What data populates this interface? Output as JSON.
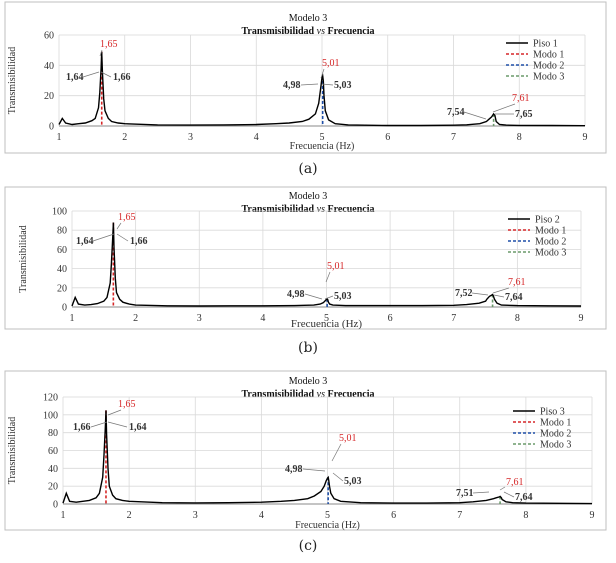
{
  "colors": {
    "series": "#000000",
    "mode1": "#d62728",
    "mode2": "#1f4fa8",
    "mode3": "#6a9a6a",
    "grid": "#d9d9d9",
    "frame": "#bfbfbf",
    "peakLabel": "#333333",
    "modeLabel": "#d62728"
  },
  "chart_data": [
    {
      "type": "line",
      "caption": "(a)",
      "title": "Modelo 3",
      "subtitle_pre": "Transmisibilidad ",
      "subtitle_vs": "vs",
      "subtitle_post": " Frecuencia",
      "xlabel": "Frecuencia (Hz)",
      "ylabel": "Transmisibilidad",
      "xlim": [
        1,
        9
      ],
      "ylim": [
        0,
        60
      ],
      "xticks": [
        1,
        2,
        3,
        4,
        5,
        6,
        7,
        8,
        9
      ],
      "yticks": [
        0,
        20,
        40,
        60
      ],
      "legend": [
        "Piso 1",
        "Modo 1",
        "Modo 2",
        "Modo 3"
      ],
      "series": {
        "name": "Piso 1",
        "x": [
          1.0,
          1.05,
          1.1,
          1.2,
          1.3,
          1.4,
          1.5,
          1.55,
          1.6,
          1.62,
          1.64,
          1.65,
          1.66,
          1.68,
          1.7,
          1.75,
          1.8,
          1.9,
          2.0,
          2.5,
          3.0,
          3.5,
          4.0,
          4.3,
          4.5,
          4.7,
          4.8,
          4.9,
          4.95,
          4.98,
          5.0,
          5.01,
          5.02,
          5.03,
          5.05,
          5.1,
          5.2,
          5.4,
          6.0,
          6.5,
          7.0,
          7.2,
          7.4,
          7.5,
          7.54,
          7.58,
          7.61,
          7.63,
          7.65,
          7.7,
          7.8,
          8.0,
          8.5,
          9.0
        ],
        "values": [
          1,
          5,
          2,
          1,
          1.5,
          2,
          3.5,
          5,
          12,
          22,
          38,
          49,
          36,
          18,
          10,
          5,
          3,
          2,
          1.5,
          0.7,
          0.6,
          0.7,
          1,
          1.5,
          2,
          3,
          4.5,
          8,
          15,
          25,
          32,
          33,
          30,
          20,
          10,
          4,
          1.5,
          0.7,
          0.3,
          0.3,
          0.5,
          0.8,
          1.5,
          3,
          4.5,
          6,
          8,
          7,
          3,
          1,
          0.6,
          0.4,
          0.3,
          0.2
        ]
      },
      "modes": [
        1.65,
        5.01,
        7.61
      ],
      "peaks": [
        {
          "text": "1,64",
          "color": "peak"
        },
        {
          "text": "1,65",
          "color": "mode"
        },
        {
          "text": "1,66",
          "color": "peak"
        },
        {
          "text": "4,98",
          "color": "peak"
        },
        {
          "text": "5,01",
          "color": "mode"
        },
        {
          "text": "5,03",
          "color": "peak"
        },
        {
          "text": "7,54",
          "color": "peak"
        },
        {
          "text": "7,61",
          "color": "mode"
        },
        {
          "text": "7,65",
          "color": "peak"
        }
      ]
    },
    {
      "type": "line",
      "caption": "(b)",
      "title": "Modelo 3",
      "subtitle_pre": "Transmisibilidad ",
      "subtitle_vs": "vs",
      "subtitle_post": " Frecuencia",
      "xlabel": "Frecuencia (Hz)",
      "ylabel": "Transmisibilidad",
      "xlim": [
        1,
        9
      ],
      "ylim": [
        0,
        100
      ],
      "xticks": [
        1,
        2,
        3,
        4,
        5,
        6,
        7,
        8,
        9
      ],
      "yticks": [
        0,
        20,
        40,
        60,
        80,
        100
      ],
      "legend": [
        "Piso 2",
        "Modo 1",
        "Modo 2",
        "Modo 3"
      ],
      "series": {
        "name": "Piso 2",
        "x": [
          1.0,
          1.05,
          1.1,
          1.2,
          1.3,
          1.4,
          1.5,
          1.55,
          1.6,
          1.62,
          1.64,
          1.65,
          1.66,
          1.68,
          1.7,
          1.75,
          1.8,
          1.9,
          2.0,
          2.5,
          3.0,
          3.5,
          4.0,
          4.5,
          4.8,
          4.9,
          4.95,
          4.98,
          5.0,
          5.01,
          5.02,
          5.03,
          5.05,
          5.1,
          5.3,
          6.0,
          6.5,
          7.0,
          7.2,
          7.4,
          7.5,
          7.52,
          7.56,
          7.6,
          7.61,
          7.62,
          7.64,
          7.68,
          7.75,
          8.0,
          8.5,
          9.0
        ],
        "values": [
          1,
          10,
          3,
          2,
          2.5,
          3.5,
          6,
          10,
          25,
          45,
          72,
          88,
          62,
          30,
          15,
          8,
          5,
          3,
          2,
          1.2,
          1,
          1.2,
          1.3,
          1.5,
          2,
          3,
          4.5,
          6.5,
          8,
          8.5,
          7.5,
          5,
          3,
          2,
          1.5,
          1.5,
          1.5,
          1.8,
          2.5,
          4,
          6,
          8,
          11,
          12.5,
          13,
          12,
          8,
          4,
          2,
          1.5,
          1.2,
          1
        ]
      },
      "modes": [
        1.65,
        5.01,
        7.61
      ],
      "peaks": [
        {
          "text": "1,64",
          "color": "peak"
        },
        {
          "text": "1,65",
          "color": "mode"
        },
        {
          "text": "1,66",
          "color": "peak"
        },
        {
          "text": "4,98",
          "color": "peak"
        },
        {
          "text": "5,01",
          "color": "mode"
        },
        {
          "text": "5,03",
          "color": "peak"
        },
        {
          "text": "7,52",
          "color": "peak"
        },
        {
          "text": "7,61",
          "color": "mode"
        },
        {
          "text": "7,64",
          "color": "peak"
        }
      ]
    },
    {
      "type": "line",
      "caption": "(c)",
      "title": "Modelo 3",
      "subtitle_pre": "Transmisibilidad ",
      "subtitle_vs": "vs",
      "subtitle_post": " Frecuencia",
      "xlabel": "Frecuencia (Hz)",
      "ylabel": "Transmisibilidad",
      "xlim": [
        1,
        9
      ],
      "ylim": [
        0,
        120
      ],
      "xticks": [
        1,
        2,
        3,
        4,
        5,
        6,
        7,
        8,
        9
      ],
      "yticks": [
        0,
        20,
        40,
        60,
        80,
        100,
        120
      ],
      "legend": [
        "Piso 3",
        "Modo 1",
        "Modo 2",
        "Modo 3"
      ],
      "series": {
        "name": "Piso 3",
        "x": [
          1.0,
          1.05,
          1.1,
          1.2,
          1.3,
          1.4,
          1.5,
          1.55,
          1.6,
          1.62,
          1.64,
          1.65,
          1.66,
          1.68,
          1.7,
          1.75,
          1.8,
          1.9,
          2.0,
          2.5,
          3.0,
          3.5,
          4.0,
          4.3,
          4.5,
          4.7,
          4.8,
          4.9,
          4.95,
          4.98,
          5.0,
          5.01,
          5.02,
          5.03,
          5.05,
          5.1,
          5.2,
          5.5,
          6.0,
          6.5,
          7.0,
          7.2,
          7.4,
          7.51,
          7.55,
          7.6,
          7.61,
          7.63,
          7.64,
          7.7,
          7.8,
          8.0,
          8.5,
          9.0
        ],
        "values": [
          1,
          12,
          3,
          2,
          3,
          4,
          7,
          12,
          30,
          55,
          85,
          105,
          78,
          40,
          20,
          10,
          6,
          4,
          3,
          1.5,
          1.2,
          1.5,
          2,
          3,
          4,
          6,
          9,
          14,
          20,
          26,
          29,
          30,
          26,
          20,
          12,
          6,
          3,
          1.5,
          1,
          1,
          1.5,
          2.5,
          4,
          6,
          7,
          8,
          8.5,
          7,
          5,
          2.5,
          1.5,
          1,
          0.8,
          0.5
        ]
      },
      "modes": [
        1.65,
        5.01,
        7.61
      ],
      "peaks": [
        {
          "text": "1,66",
          "color": "peak"
        },
        {
          "text": "1,65",
          "color": "mode"
        },
        {
          "text": "1,64",
          "color": "peak"
        },
        {
          "text": "4,98",
          "color": "peak"
        },
        {
          "text": "5,01",
          "color": "mode"
        },
        {
          "text": "5,03",
          "color": "peak"
        },
        {
          "text": "7,51",
          "color": "peak"
        },
        {
          "text": "7,61",
          "color": "mode"
        },
        {
          "text": "7,64",
          "color": "peak"
        }
      ]
    }
  ]
}
